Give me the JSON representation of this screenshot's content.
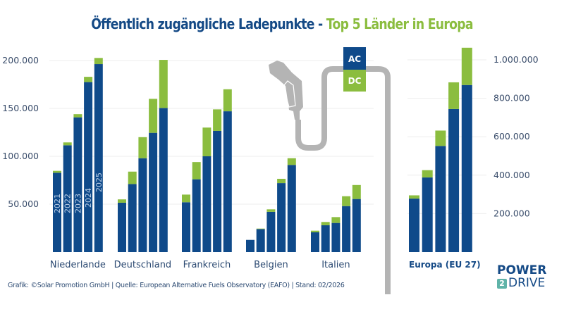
{
  "header": {
    "title_part1": "Öffentlich zugängliche Ladepunkte",
    "title_sep": " - ",
    "title_part2": "Top 5 Länder in Europa"
  },
  "colors": {
    "ac": "#0f4a8a",
    "dc": "#8bbd3f",
    "cable": "#b4b4b4",
    "grid": "#eeeeee",
    "title_blue": "#154a86",
    "title_green": "#8bbd3f"
  },
  "legend": {
    "items": [
      {
        "label": "AC",
        "color": "#0f4a8a"
      },
      {
        "label": "DC",
        "color": "#8bbd3f"
      }
    ]
  },
  "footer": {
    "credit": "Grafik: ©Solar Promotion GmbH | Quelle: European Alternative Fuels Observatory (EAFO) | Stand: 02/2026"
  },
  "logo": {
    "line1": "POWER",
    "badge": "2",
    "line2": "DRIVE"
  },
  "chart_data": [
    {
      "type": "bar",
      "stacked": true,
      "title": "Öffentlich zugängliche Ladepunkte - Top 5 Länder in Europa",
      "xlabel": "",
      "ylabel": "",
      "ylim": [
        0,
        200000
      ],
      "yticks": [
        50000,
        100000,
        150000,
        200000
      ],
      "ytick_labels": [
        "50.000",
        "100.000",
        "150.000",
        "200.000"
      ],
      "axis_side": "left",
      "grid": true,
      "years": [
        "2021",
        "2022",
        "2023",
        "2024",
        "2025"
      ],
      "year_labels_shown_on": "Niederlande",
      "groups": [
        {
          "category": "Niederlande",
          "AC": [
            82800,
            111500,
            140700,
            177500,
            196300
          ],
          "DC": [
            2000,
            3000,
            3300,
            5500,
            6400
          ]
        },
        {
          "category": "Deutschland",
          "AC": [
            51500,
            71000,
            98000,
            124500,
            150500
          ],
          "DC": [
            3500,
            13000,
            22000,
            35500,
            50200
          ]
        },
        {
          "category": "Frankreich",
          "AC": [
            52000,
            76000,
            100000,
            126500,
            147000
          ],
          "DC": [
            8000,
            18000,
            30000,
            22500,
            23000
          ]
        },
        {
          "category": "Belgien",
          "AC": [
            12700,
            24000,
            42000,
            72000,
            91000
          ],
          "DC": [
            0,
            500,
            2600,
            4500,
            7000
          ]
        },
        {
          "category": "Italien",
          "AC": [
            20600,
            28000,
            30400,
            48000,
            55400
          ],
          "DC": [
            1700,
            3400,
            6100,
            10300,
            14600
          ]
        }
      ]
    },
    {
      "type": "bar",
      "stacked": true,
      "title": "",
      "ylim": [
        0,
        1000000
      ],
      "yticks": [
        200000,
        400000,
        600000,
        800000,
        1000000
      ],
      "ytick_labels": [
        "200.000",
        "400.000",
        "600.000",
        "800.000",
        "1.000.000"
      ],
      "axis_side": "right",
      "grid": true,
      "years": [
        "2021",
        "2022",
        "2023",
        "2024",
        "2025"
      ],
      "groups": [
        {
          "category": "Europa  (EU 27)",
          "AC": [
            278000,
            388000,
            552000,
            744000,
            869000
          ],
          "DC": [
            17000,
            38000,
            80000,
            139000,
            194000
          ]
        }
      ]
    }
  ]
}
